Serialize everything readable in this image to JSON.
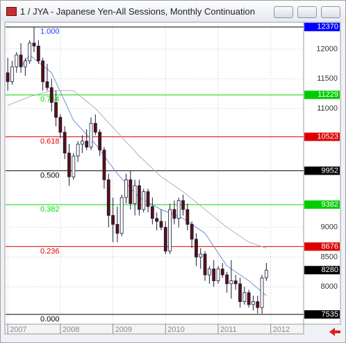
{
  "window": {
    "title": "1 / JYA - Japanese Yen-All Sessions, Monthly Continuation"
  },
  "chart_data": {
    "type": "candlestick",
    "open": [
      11600,
      11450,
      11700,
      11900,
      11700,
      11800,
      12100,
      12050,
      11800,
      11450,
      11350,
      11100,
      10850,
      10600,
      10250,
      9850,
      10200,
      10400,
      10450,
      10350,
      10750,
      10600,
      10300,
      9800,
      9200,
      9050,
      8900,
      9500,
      9800,
      9400,
      9700,
      9300,
      9600,
      9350,
      9150,
      9100,
      9000,
      8600,
      9300,
      9150,
      9450,
      9300,
      9050,
      8800,
      8500,
      8550,
      8200,
      8300,
      8100,
      8300,
      8200,
      8050,
      8100,
      8050,
      7750,
      7900,
      7700,
      7750,
      7650,
      8150
    ],
    "high": [
      11850,
      11800,
      11950,
      12100,
      11850,
      12150,
      12370,
      12150,
      11850,
      11750,
      11500,
      11300,
      10900,
      10700,
      10400,
      10250,
      10450,
      10550,
      10650,
      10850,
      10900,
      10650,
      10350,
      9900,
      9500,
      9350,
      9550,
      9900,
      9950,
      9800,
      9800,
      9650,
      9650,
      9500,
      9250,
      9300,
      9100,
      9400,
      9450,
      9500,
      9550,
      9400,
      9100,
      8900,
      8650,
      8600,
      8350,
      8450,
      8350,
      8400,
      8250,
      8450,
      8200,
      8150,
      8000,
      7950,
      7850,
      7850,
      8200,
      8400
    ],
    "low": [
      11300,
      11400,
      11600,
      11600,
      11550,
      11750,
      11950,
      11750,
      11300,
      11300,
      10950,
      10700,
      10500,
      10150,
      9700,
      9800,
      10100,
      10250,
      10300,
      10300,
      10550,
      10200,
      9650,
      9000,
      8750,
      8750,
      8850,
      9400,
      9300,
      9200,
      9200,
      9250,
      9250,
      9050,
      8950,
      8950,
      8550,
      8550,
      9050,
      9000,
      9200,
      8950,
      8650,
      8350,
      8300,
      8100,
      8050,
      8000,
      8050,
      8150,
      7900,
      7800,
      7950,
      7650,
      7700,
      7650,
      7600,
      7550,
      7550,
      8100
    ],
    "close": [
      11450,
      11700,
      11900,
      11700,
      11800,
      12100,
      12050,
      11800,
      11450,
      11350,
      11100,
      10850,
      10600,
      10250,
      9850,
      10200,
      10400,
      10450,
      10350,
      10750,
      10600,
      10300,
      9800,
      9200,
      9050,
      8900,
      9500,
      9800,
      9400,
      9700,
      9300,
      9600,
      9350,
      9150,
      9100,
      9000,
      8600,
      9300,
      9150,
      9450,
      9300,
      9050,
      8800,
      8500,
      8550,
      8200,
      8300,
      8100,
      8300,
      8200,
      8050,
      8100,
      8050,
      7750,
      7900,
      7700,
      7750,
      7650,
      8150,
      8280
    ],
    "up_color": "#ffffff",
    "down_color": "#5a1010",
    "outline": "#1a1a3a",
    "series": [
      {
        "color": "#6f93d8",
        "x": [
          3,
          5,
          10,
          15,
          20,
          25,
          30,
          35,
          40,
          45,
          50,
          55,
          59
        ],
        "values": [
          11700,
          11900,
          11600,
          10800,
          10400,
          9900,
          9500,
          9300,
          9150,
          8900,
          8350,
          8100,
          7850
        ]
      },
      {
        "color": "#b0b0b0",
        "x": [
          0,
          5,
          10,
          15,
          20,
          25,
          30,
          35,
          40,
          45,
          50,
          55,
          59
        ],
        "values": [
          11050,
          11200,
          11300,
          11300,
          11000,
          10600,
          10200,
          9850,
          9600,
          9300,
          9000,
          8750,
          8650
        ]
      }
    ],
    "fib_levels": [
      {
        "ratio": "1.000",
        "price": 12370,
        "color": "#000000",
        "label_color": "#2040ff",
        "box_color": "#0000ff"
      },
      {
        "ratio": "0.764",
        "price": 11229,
        "color": "#00dd00",
        "label_color": "#00dd00",
        "box_color": "#00cc00"
      },
      {
        "ratio": "0.618",
        "price": 10523,
        "color": "#dd0000",
        "label_color": "#dd0000",
        "box_color": "#dd0000"
      },
      {
        "ratio": "0.500",
        "price": 9952,
        "color": "#000000",
        "label_color": "#000000",
        "box_color": "#000000"
      },
      {
        "ratio": "0.382",
        "price": 9382,
        "color": "#00dd00",
        "label_color": "#00dd00",
        "box_color": "#00cc00"
      },
      {
        "ratio": "0.236",
        "price": 8676,
        "color": "#dd0000",
        "label_color": "#dd0000",
        "box_color": "#dd0000"
      },
      {
        "ratio": "0.000",
        "price": 7535,
        "color": "#000000",
        "label_color": "#000000",
        "box_color": "#000000"
      }
    ],
    "ylim": [
      7370,
      12450
    ],
    "yticks": [
      8000,
      8500,
      9000,
      11000,
      11500,
      12000
    ],
    "grid": true,
    "xlim": [
      -0.5,
      67.5
    ],
    "xticks": [
      {
        "value": 0,
        "label": "2007"
      },
      {
        "value": 12,
        "label": "2008"
      },
      {
        "value": 24,
        "label": "2009"
      },
      {
        "value": 36,
        "label": "2010"
      },
      {
        "value": 48,
        "label": "2011"
      },
      {
        "value": 60,
        "label": "2012"
      }
    ]
  }
}
